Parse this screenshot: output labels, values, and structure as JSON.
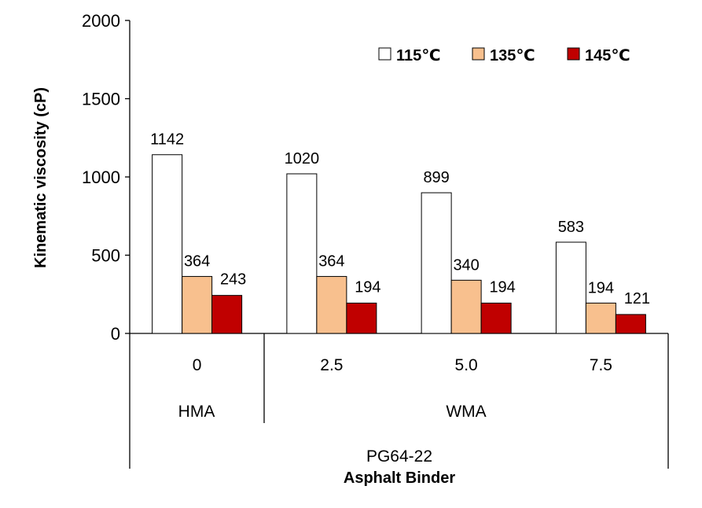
{
  "chart_data": {
    "type": "bar",
    "title": "",
    "ylabel": "Kinematic viscosity (cP)",
    "xlabel": "Asphalt Binder",
    "ylim": [
      0,
      2000
    ],
    "yticks": [
      0,
      500,
      1000,
      1500,
      2000
    ],
    "categories": [
      "0",
      "2.5",
      "5.0",
      "7.5"
    ],
    "groups": [
      {
        "label": "HMA",
        "categories": [
          "0"
        ]
      },
      {
        "label": "WMA",
        "categories": [
          "2.5",
          "5.0",
          "7.5"
        ]
      }
    ],
    "binder": "PG64-22",
    "series": [
      {
        "name": "115℃",
        "color": "#ffffff",
        "values": [
          1142,
          1020,
          899,
          583
        ]
      },
      {
        "name": "135℃",
        "color": "#f8c08e",
        "values": [
          364,
          364,
          340,
          194
        ]
      },
      {
        "name": "145℃",
        "color": "#c00000",
        "values": [
          243,
          194,
          194,
          121
        ]
      }
    ],
    "legend_position": "top-right",
    "grid": false
  }
}
